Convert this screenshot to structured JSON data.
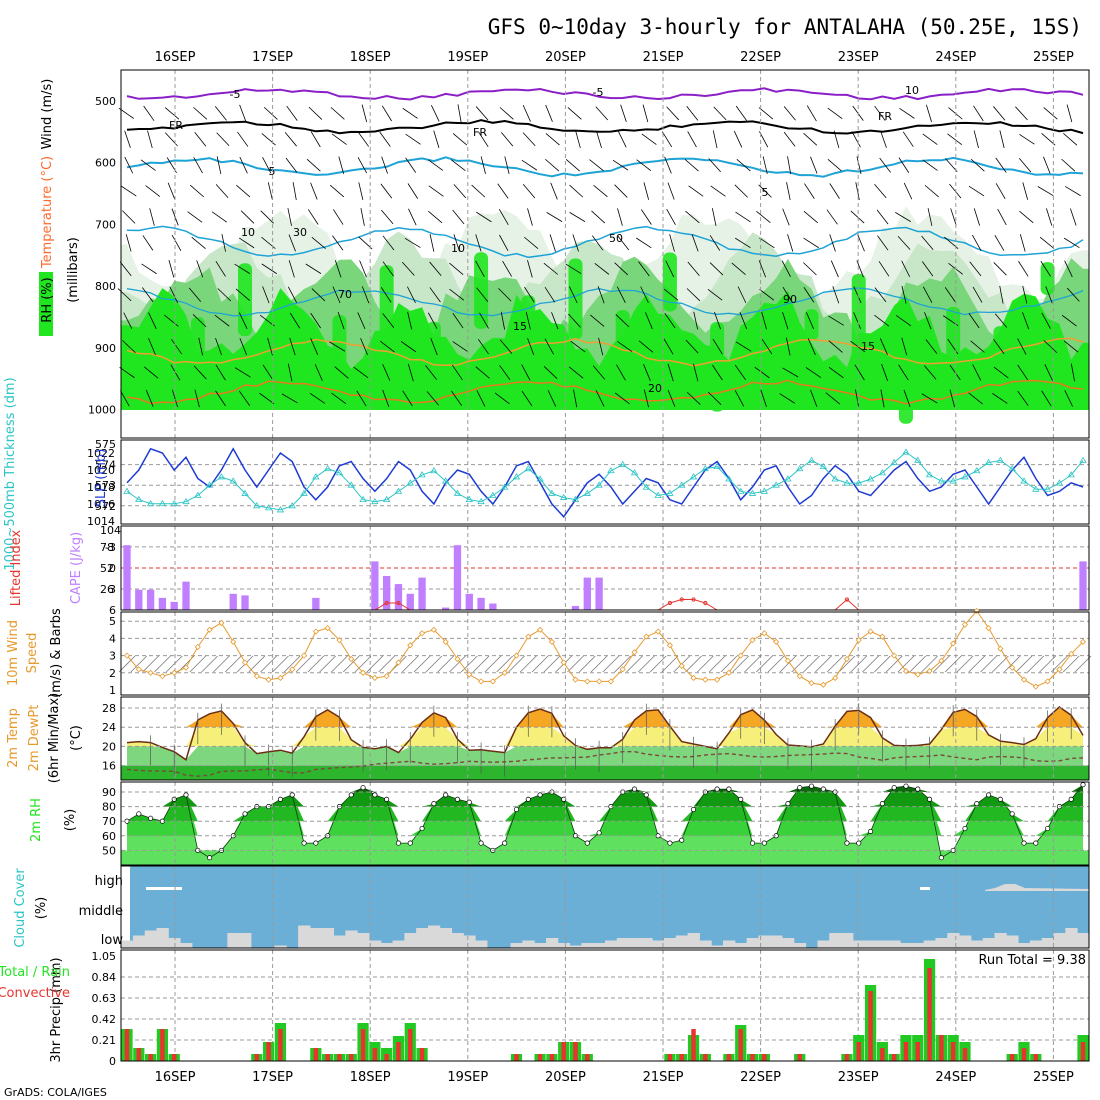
{
  "title": "GFS 0~10day 3-hourly for ANTALAHA (50.25E, 15S)",
  "footer": "GrADS: COLA/IGES",
  "dates": [
    "16SEP",
    "17SEP",
    "18SEP",
    "19SEP",
    "20SEP",
    "21SEP",
    "22SEP",
    "23SEP",
    "24SEP",
    "25SEP"
  ],
  "colors": {
    "rh_green": "#1fe61f",
    "rh_mid": "#7ad67a",
    "rh_light": "#c8e6c8",
    "sky": "#6baed6",
    "cloud": "#d9d9d9",
    "precip_total": "#22c922",
    "precip_conv": "#e8342e",
    "lifted": "#e8342e",
    "cape": "#bf7fff",
    "wind10": "#e69a2e",
    "slp": "#1d3bd4",
    "thick": "#2cc5c5",
    "temp_hi": "#f5a623",
    "temp_mid": "#f6f07a",
    "dew_green": "#7ed67e"
  },
  "chart_data": [
    {
      "type": "heatmap",
      "panel": "upper-air",
      "ylabel": "(millibars)",
      "legend_labels": [
        "RH (%)",
        "Temperature (°C)",
        "Wind (m/s)"
      ],
      "y_ticks": [
        "500",
        "600",
        "700",
        "800",
        "900",
        "1000"
      ],
      "contour_labels": [
        "-5",
        "-5",
        "FR",
        "FR",
        "FR",
        "5",
        "5",
        "10",
        "10",
        "15",
        "15",
        "20",
        "10",
        "30",
        "50",
        "70",
        "90"
      ]
    },
    {
      "type": "line",
      "panel": "slp-thickness",
      "ylabel_left": "1000~500mb Thickness (dm)",
      "ylabel_right": "SLP (mb)",
      "y_ticks_left": [
        "575",
        "574",
        "573",
        "572"
      ],
      "y_ticks_right": [
        "1022",
        "1020",
        "1018",
        "1016",
        "1014"
      ],
      "series": [
        {
          "name": "SLP (mb)",
          "values": [
            1018.5,
            1020,
            1022.5,
            1022,
            1020,
            1021.5,
            1019,
            1018,
            1020,
            1022.5,
            1020,
            1018,
            1020,
            1022,
            1021,
            1018,
            1016.5,
            1018,
            1020.5,
            1021,
            1019,
            1017.5,
            1019,
            1021,
            1020,
            1017.5,
            1016,
            1018.5,
            1020,
            1019.5,
            1017.5,
            1016,
            1018,
            1020.5,
            1021,
            1018.5,
            1016,
            1014.5,
            1016.5,
            1018.5,
            1019.5,
            1018,
            1016,
            1017.5,
            1019,
            1018.5,
            1016.5,
            1016,
            1018,
            1020,
            1021,
            1019,
            1016.5,
            1018,
            1020,
            1020.5,
            1018,
            1016,
            1017,
            1019,
            1020.5,
            1019.5,
            1017.5,
            1017,
            1018.5,
            1020,
            1021,
            1019,
            1017.5,
            1018,
            1019.5,
            1020,
            1018,
            1016,
            1018,
            1020,
            1021.5,
            1019,
            1017,
            1017.5,
            1018.5,
            1018
          ]
        },
        {
          "name": "1000~500mb Thickness (dm)",
          "values": [
            572.7,
            572.3,
            572.1,
            572.1,
            572.1,
            572.2,
            572.5,
            573.0,
            573.4,
            573.2,
            572.6,
            572.0,
            571.9,
            571.8,
            572.0,
            572.6,
            573.4,
            573.8,
            573.6,
            573.0,
            572.3,
            572.2,
            572.3,
            572.7,
            573.1,
            573.5,
            573.7,
            573.2,
            572.6,
            572.3,
            572.2,
            572.5,
            572.9,
            573.4,
            573.8,
            573.3,
            572.6,
            572.4,
            572.3,
            572.6,
            573.0,
            573.7,
            574.0,
            573.6,
            572.9,
            572.5,
            572.6,
            573.0,
            573.4,
            573.8,
            573.9,
            573.3,
            572.7,
            572.6,
            572.7,
            573.0,
            573.3,
            573.8,
            574.2,
            573.9,
            573.3,
            573.1,
            573.1,
            573.3,
            573.6,
            574.1,
            574.6,
            574.2,
            573.5,
            573.2,
            573.2,
            573.4,
            573.7,
            574.1,
            574.2,
            573.8,
            573.2,
            572.8,
            572.8,
            573.1,
            573.5,
            574.2
          ]
        }
      ]
    },
    {
      "type": "bar",
      "panel": "cape-lifted",
      "ylabel_left": "Lifted Index",
      "ylabel_right": "CAPE (J/kg)",
      "y_ticks_left": [
        "-3",
        "0",
        "3",
        "6"
      ],
      "y_ticks_right": [
        "104",
        "78",
        "52",
        "26"
      ],
      "series": [
        {
          "name": "CAPE (J/kg)",
          "values": [
            80,
            25,
            25,
            15,
            10,
            35,
            0,
            0,
            0,
            20,
            18,
            0,
            0,
            0,
            0,
            0,
            15,
            0,
            0,
            0,
            0,
            60,
            42,
            32,
            20,
            40,
            0,
            3,
            80,
            20,
            15,
            8,
            0,
            0,
            0,
            0,
            0,
            0,
            5,
            40,
            40,
            0,
            0,
            0,
            0,
            0,
            0,
            0,
            0,
            0,
            0,
            0,
            0,
            0,
            0,
            0,
            0,
            0,
            0,
            0,
            0,
            0,
            0,
            0,
            0,
            0,
            0,
            0,
            0,
            0,
            0,
            0,
            0,
            0,
            0,
            0,
            0,
            0,
            0,
            0,
            0,
            60
          ]
        },
        {
          "name": "Lifted Index",
          "values": [
            6,
            6,
            6,
            6,
            6,
            6,
            6,
            6,
            6,
            6,
            6,
            6,
            6,
            6,
            6,
            6,
            6,
            6,
            6,
            6,
            6,
            6,
            5,
            5,
            6,
            6,
            6,
            6,
            6,
            6,
            6,
            6,
            6,
            6,
            6,
            6,
            6,
            6,
            6,
            6,
            6,
            6,
            6,
            6,
            6,
            6,
            5,
            4.5,
            4.5,
            5,
            6,
            6,
            6,
            6,
            6,
            6,
            6,
            6,
            6,
            6,
            6,
            4.5,
            6,
            6,
            6,
            6,
            6,
            6,
            6,
            6,
            6,
            6,
            6,
            6,
            6,
            6,
            6,
            6,
            6,
            6,
            6,
            6
          ]
        }
      ]
    },
    {
      "type": "line",
      "panel": "wind10m",
      "ylabel": "10m Wind Speed (m/s) & Barbs",
      "y_ticks": [
        "5",
        "4",
        "3",
        "2",
        "1"
      ],
      "series": [
        {
          "name": "10m Wind Speed (m/s)",
          "values": [
            3.0,
            2.2,
            2.0,
            1.8,
            2.0,
            2.3,
            3.5,
            4.5,
            4.9,
            3.8,
            2.6,
            1.8,
            1.6,
            1.7,
            2.2,
            3.0,
            4.4,
            4.6,
            3.9,
            2.8,
            2.0,
            1.7,
            1.8,
            2.6,
            3.6,
            4.3,
            4.5,
            3.8,
            2.8,
            1.9,
            1.5,
            1.5,
            2.0,
            3.0,
            4.1,
            4.5,
            3.8,
            2.6,
            1.6,
            1.5,
            1.5,
            1.5,
            2.2,
            3.2,
            4.1,
            4.4,
            3.6,
            2.4,
            1.7,
            1.6,
            1.6,
            2.0,
            3.0,
            3.9,
            4.3,
            3.8,
            2.7,
            1.8,
            1.4,
            1.3,
            1.7,
            2.8,
            3.9,
            4.4,
            4.1,
            3.0,
            2.1,
            1.9,
            2.1,
            2.7,
            3.7,
            4.8,
            5.6,
            4.6,
            3.4,
            2.3,
            1.6,
            1.2,
            1.5,
            2.2,
            3.1,
            3.8
          ]
        }
      ]
    },
    {
      "type": "area",
      "panel": "temperature",
      "ylabel": "2m Temp 2m DewPt (6hr Min/Max) (°C)",
      "y_ticks": [
        "28",
        "24",
        "20",
        "16"
      ],
      "series": [
        {
          "name": "2m Temp",
          "values": [
            20.8,
            21.0,
            20.8,
            19.8,
            18.9,
            17.2,
            25.5,
            26.8,
            27.4,
            24.8,
            20.8,
            18.5,
            18.9,
            19.2,
            18.6,
            22.0,
            26.2,
            27.6,
            26.1,
            21.4,
            19.8,
            19.5,
            20.0,
            18.7,
            21.5,
            25.0,
            27.0,
            26.0,
            21.5,
            19.2,
            19.3,
            19.0,
            18.7,
            24.0,
            27.0,
            27.8,
            26.9,
            22.2,
            20.2,
            19.4,
            19.7,
            19.7,
            21.5,
            25.5,
            27.4,
            27.6,
            24.2,
            21.0,
            20.5,
            20.0,
            19.5,
            22.8,
            26.6,
            27.6,
            25.5,
            22.5,
            20.3,
            20.1,
            19.9,
            20.5,
            24.2,
            27.3,
            27.5,
            26.0,
            21.8,
            20.2,
            20.1,
            20.2,
            20.5,
            23.5,
            27.1,
            27.7,
            26.2,
            22.4,
            21.1,
            20.8,
            20.4,
            21.6,
            26.0,
            28.2,
            26.5,
            22.3
          ]
        },
        {
          "name": "2m DewPt",
          "values": [
            15.2,
            15.0,
            14.9,
            14.9,
            14.8,
            14.0,
            13.8,
            14.0,
            14.8,
            14.9,
            14.9,
            15.1,
            15.3,
            14.9,
            14.5,
            14.5,
            15.2,
            15.4,
            15.6,
            15.7,
            15.9,
            16.3,
            16.5,
            16.7,
            16.9,
            16.5,
            16.3,
            16.4,
            16.6,
            16.9,
            16.8,
            16.7,
            16.8,
            16.9,
            17.2,
            17.4,
            17.6,
            17.6,
            17.7,
            17.8,
            18.2,
            18.5,
            18.9,
            18.9,
            18.4,
            18.1,
            17.9,
            17.8,
            17.9,
            18.2,
            18.4,
            18.5,
            18.2,
            17.9,
            17.8,
            17.9,
            18.1,
            18.2,
            18.3,
            18.4,
            18.6,
            18.5,
            17.8,
            17.5,
            17.1,
            17.6,
            17.8,
            17.9,
            18.0,
            18.2,
            17.8,
            17.5,
            17.2,
            17.8,
            17.9,
            17.8,
            17.6,
            17.0,
            16.9,
            17.0,
            17.5,
            17.6
          ]
        }
      ]
    },
    {
      "type": "area",
      "panel": "rh2m",
      "ylabel": "2m RH (%)",
      "y_ticks": [
        "90",
        "80",
        "70",
        "60",
        "50"
      ],
      "series": [
        {
          "name": "2m RH (%)",
          "values": [
            70,
            75,
            72,
            70,
            85,
            88,
            50,
            45,
            50,
            60,
            75,
            80,
            80,
            85,
            88,
            55,
            55,
            60,
            80,
            88,
            93,
            88,
            85,
            55,
            55,
            65,
            82,
            88,
            85,
            83,
            55,
            50,
            55,
            78,
            85,
            88,
            90,
            85,
            60,
            55,
            62,
            80,
            90,
            92,
            88,
            60,
            55,
            57,
            78,
            90,
            92,
            92,
            85,
            55,
            55,
            60,
            82,
            93,
            94,
            92,
            90,
            55,
            55,
            63,
            82,
            93,
            94,
            92,
            85,
            45,
            50,
            65,
            82,
            88,
            85,
            75,
            55,
            55,
            65,
            80,
            85,
            95
          ]
        }
      ]
    },
    {
      "type": "area",
      "panel": "cloud",
      "ylabel": "Cloud Cover (%)",
      "level_labels": [
        "high",
        "middle",
        "low"
      ],
      "series": [
        {
          "name": "low",
          "values": [
            15,
            25,
            35,
            40,
            20,
            10,
            0,
            0,
            0,
            30,
            30,
            0,
            0,
            5,
            0,
            45,
            40,
            40,
            25,
            35,
            30,
            15,
            10,
            15,
            30,
            40,
            45,
            40,
            30,
            25,
            15,
            0,
            0,
            10,
            15,
            10,
            20,
            10,
            5,
            10,
            10,
            15,
            20,
            20,
            20,
            15,
            20,
            25,
            30,
            15,
            5,
            15,
            10,
            20,
            25,
            25,
            20,
            10,
            0,
            15,
            30,
            30,
            15,
            15,
            15,
            15,
            10,
            10,
            15,
            20,
            30,
            25,
            15,
            20,
            30,
            25,
            10,
            15,
            20,
            30,
            40,
            30
          ]
        }
      ]
    },
    {
      "type": "bar",
      "panel": "precip",
      "ylabel": "3hr Precip (mm)",
      "legend_labels": [
        "Total / Rain",
        "Convective"
      ],
      "y_ticks": [
        "1.05",
        "0.84",
        "0.63",
        "0.42",
        "0.21",
        "0"
      ],
      "run_total": "Run Total = 9.38",
      "series": [
        {
          "name": "Total / Rain",
          "values": [
            0.32,
            0.13,
            0.07,
            0.32,
            0.07,
            0,
            0,
            0,
            0,
            0,
            0,
            0.07,
            0.19,
            0.38,
            0,
            0,
            0.13,
            0.07,
            0.07,
            0.07,
            0.38,
            0.19,
            0.13,
            0.25,
            0.38,
            0.13,
            0,
            0,
            0,
            0,
            0,
            0,
            0,
            0.07,
            0,
            0.07,
            0.07,
            0.19,
            0.19,
            0.07,
            0,
            0,
            0,
            0,
            0,
            0,
            0.07,
            0.07,
            0.26,
            0.07,
            0,
            0.07,
            0.36,
            0.07,
            0.07,
            0,
            0,
            0.07,
            0,
            0,
            0,
            0.07,
            0.26,
            0.76,
            0.19,
            0.07,
            0.26,
            0.26,
            1.02,
            0.26,
            0.26,
            0.19,
            0,
            0,
            0,
            0.07,
            0.19,
            0.07,
            0,
            0,
            0,
            0.26
          ]
        },
        {
          "name": "Convective",
          "values": [
            0.32,
            0.13,
            0.07,
            0.32,
            0.07,
            0,
            0,
            0,
            0,
            0,
            0,
            0.07,
            0.19,
            0.32,
            0,
            0,
            0.13,
            0.07,
            0.07,
            0.07,
            0.32,
            0.13,
            0.07,
            0.19,
            0.32,
            0.13,
            0,
            0,
            0,
            0,
            0,
            0,
            0,
            0.07,
            0,
            0.07,
            0.07,
            0.19,
            0.19,
            0.07,
            0,
            0,
            0,
            0,
            0,
            0,
            0.07,
            0.07,
            0.32,
            0.07,
            0,
            0.07,
            0.32,
            0.07,
            0.07,
            0,
            0,
            0.07,
            0,
            0,
            0,
            0.07,
            0.19,
            0.7,
            0.13,
            0.07,
            0.19,
            0.19,
            0.93,
            0.26,
            0.19,
            0.13,
            0,
            0,
            0,
            0.07,
            0.13,
            0.07,
            0,
            0,
            0,
            0.19
          ]
        }
      ]
    }
  ]
}
